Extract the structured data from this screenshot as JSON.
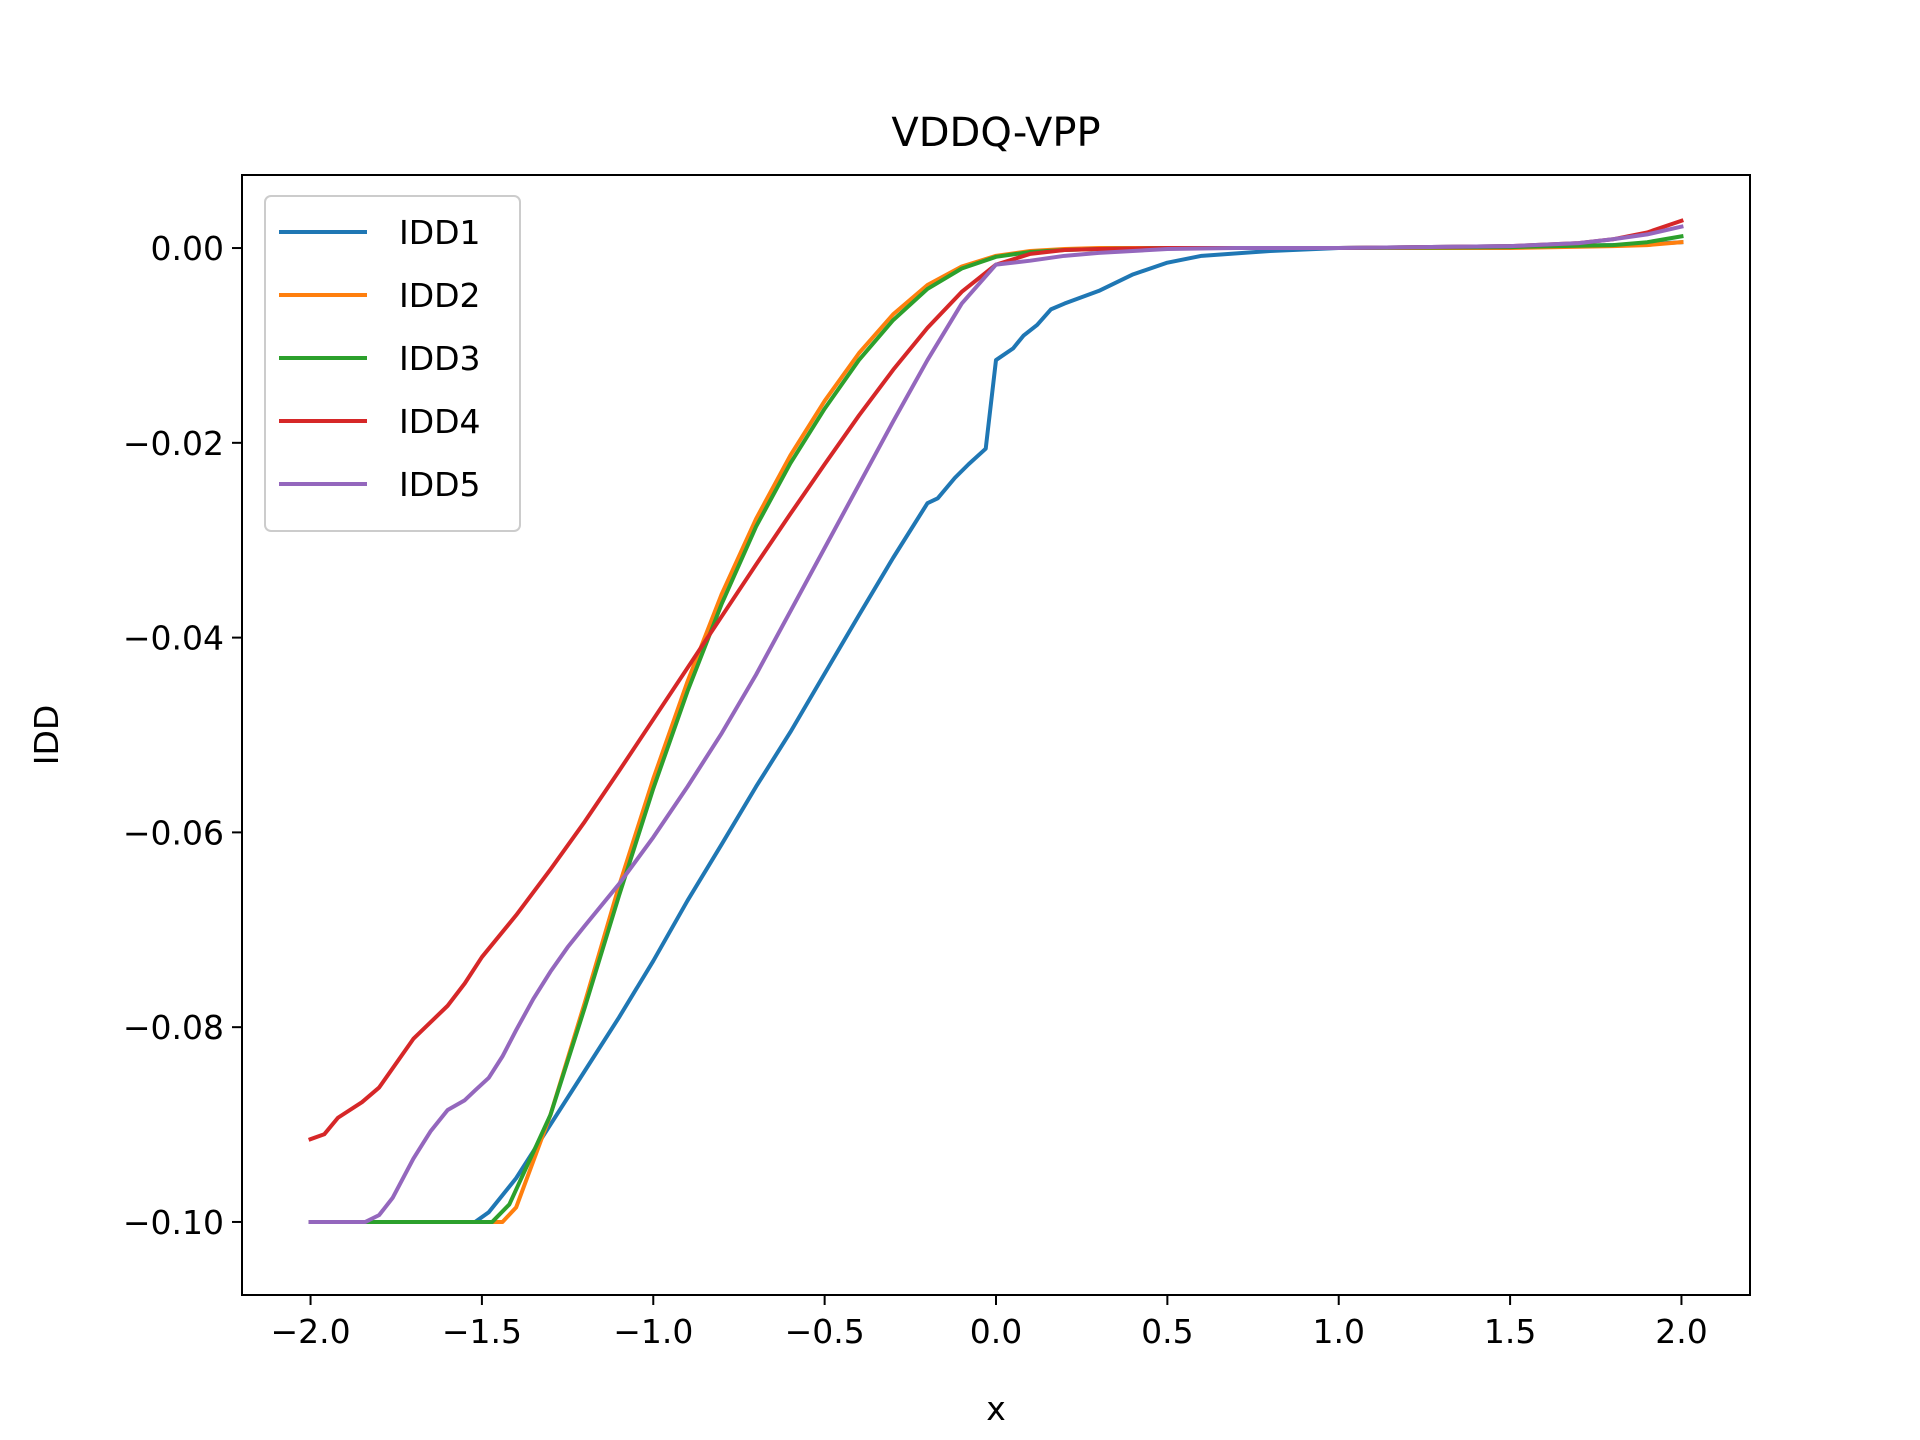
{
  "chart_data": {
    "type": "line",
    "title": "VDDQ-VPP",
    "xlabel": "x",
    "ylabel": "IDD",
    "xlim": [
      -2.2,
      2.2
    ],
    "ylim": [
      -0.1075,
      0.0075
    ],
    "xticks": [
      -2.0,
      -1.5,
      -1.0,
      -0.5,
      0.0,
      0.5,
      1.0,
      1.5,
      2.0
    ],
    "xtick_labels": [
      "−2.0",
      "−1.5",
      "−1.0",
      "−0.5",
      "0.0",
      "0.5",
      "1.0",
      "1.5",
      "2.0"
    ],
    "yticks": [
      0.0,
      -0.02,
      -0.04,
      -0.06,
      -0.08,
      -0.1
    ],
    "ytick_labels": [
      "0.00",
      "−0.02",
      "−0.04",
      "−0.06",
      "−0.08",
      "−0.10"
    ],
    "grid": false,
    "legend_position": "top-left",
    "series": [
      {
        "name": "IDD1",
        "color": "#1f77b4",
        "x": [
          -2.0,
          -1.9,
          -1.8,
          -1.6,
          -1.52,
          -1.48,
          -1.4,
          -1.3,
          -1.2,
          -1.1,
          -1.0,
          -0.9,
          -0.8,
          -0.7,
          -0.6,
          -0.5,
          -0.4,
          -0.3,
          -0.2,
          -0.17,
          -0.12,
          -0.08,
          -0.03,
          0.0,
          0.05,
          0.08,
          0.12,
          0.16,
          0.2,
          0.3,
          0.4,
          0.5,
          0.6,
          0.8,
          1.0,
          1.5,
          1.8,
          1.9,
          2.0
        ],
        "y": [
          -0.1,
          -0.1,
          -0.1,
          -0.1,
          -0.1,
          -0.099,
          -0.0955,
          -0.09,
          -0.0845,
          -0.079,
          -0.0732,
          -0.067,
          -0.0612,
          -0.0553,
          -0.0497,
          -0.0437,
          -0.0377,
          -0.0318,
          -0.0262,
          -0.0257,
          -0.0236,
          -0.0222,
          -0.0206,
          -0.0115,
          -0.0103,
          -0.009,
          -0.0079,
          -0.0063,
          -0.0057,
          -0.0044,
          -0.0027,
          -0.0015,
          -0.0008,
          -0.0003,
          0.0,
          0.0002,
          0.0003,
          0.0004,
          0.0006
        ]
      },
      {
        "name": "IDD2",
        "color": "#ff7f0e",
        "x": [
          -2.0,
          -1.6,
          -1.5,
          -1.44,
          -1.4,
          -1.3,
          -1.2,
          -1.1,
          -1.0,
          -0.9,
          -0.8,
          -0.7,
          -0.6,
          -0.5,
          -0.4,
          -0.3,
          -0.2,
          -0.1,
          0.0,
          0.1,
          0.2,
          0.3,
          0.5,
          0.7,
          1.0,
          1.5,
          1.8,
          1.9,
          2.0
        ],
        "y": [
          -0.1,
          -0.1,
          -0.1,
          -0.1,
          -0.0985,
          -0.089,
          -0.0775,
          -0.0655,
          -0.0545,
          -0.0445,
          -0.0355,
          -0.0278,
          -0.0213,
          -0.0157,
          -0.0108,
          -0.0068,
          -0.0038,
          -0.0019,
          -0.0008,
          -0.0003,
          -0.0001,
          0.0,
          0.0,
          0.0,
          0.0,
          0.0,
          0.0002,
          0.0003,
          0.0006
        ]
      },
      {
        "name": "IDD3",
        "color": "#2ca02c",
        "x": [
          -2.0,
          -1.6,
          -1.5,
          -1.47,
          -1.42,
          -1.3,
          -1.2,
          -1.1,
          -1.0,
          -0.9,
          -0.8,
          -0.7,
          -0.6,
          -0.5,
          -0.4,
          -0.3,
          -0.2,
          -0.1,
          0.0,
          0.1,
          0.2,
          0.3,
          0.5,
          0.7,
          1.0,
          1.5,
          1.8,
          1.9,
          2.0
        ],
        "y": [
          -0.1,
          -0.1,
          -0.1,
          -0.1,
          -0.0982,
          -0.089,
          -0.078,
          -0.0665,
          -0.0555,
          -0.0455,
          -0.0365,
          -0.0286,
          -0.0221,
          -0.0165,
          -0.0115,
          -0.0074,
          -0.0042,
          -0.0021,
          -0.0009,
          -0.0004,
          -0.0002,
          -0.0001,
          0.0,
          0.0,
          0.0,
          0.0001,
          0.0003,
          0.0006,
          0.0012
        ]
      },
      {
        "name": "IDD4",
        "color": "#d62728",
        "x": [
          -2.0,
          -1.96,
          -1.92,
          -1.85,
          -1.8,
          -1.7,
          -1.6,
          -1.55,
          -1.5,
          -1.4,
          -1.3,
          -1.2,
          -1.1,
          -1.0,
          -0.9,
          -0.8,
          -0.7,
          -0.6,
          -0.5,
          -0.4,
          -0.3,
          -0.2,
          -0.1,
          0.0,
          0.1,
          0.2,
          0.3,
          0.5,
          0.7,
          1.0,
          1.5,
          1.7,
          1.8,
          1.9,
          2.0
        ],
        "y": [
          -0.0915,
          -0.091,
          -0.0893,
          -0.0877,
          -0.0862,
          -0.0812,
          -0.0778,
          -0.0755,
          -0.0728,
          -0.0685,
          -0.0638,
          -0.0589,
          -0.0537,
          -0.0484,
          -0.0431,
          -0.0378,
          -0.0325,
          -0.0273,
          -0.0222,
          -0.0172,
          -0.0125,
          -0.0082,
          -0.0045,
          -0.0017,
          -0.0006,
          -0.0002,
          -0.0001,
          0.0,
          0.0,
          0.0,
          0.0002,
          0.0005,
          0.0009,
          0.0016,
          0.0028
        ]
      },
      {
        "name": "IDD5",
        "color": "#9467bd",
        "x": [
          -2.0,
          -1.9,
          -1.84,
          -1.8,
          -1.76,
          -1.7,
          -1.65,
          -1.6,
          -1.55,
          -1.52,
          -1.48,
          -1.44,
          -1.4,
          -1.35,
          -1.3,
          -1.25,
          -1.2,
          -1.1,
          -1.0,
          -0.9,
          -0.8,
          -0.7,
          -0.6,
          -0.5,
          -0.4,
          -0.3,
          -0.2,
          -0.1,
          0.0,
          0.1,
          0.2,
          0.3,
          0.5,
          0.7,
          1.0,
          1.5,
          1.7,
          1.8,
          1.9,
          2.0
        ],
        "y": [
          -0.1,
          -0.1,
          -0.1,
          -0.0993,
          -0.0975,
          -0.0935,
          -0.0907,
          -0.0885,
          -0.0875,
          -0.0865,
          -0.0852,
          -0.083,
          -0.0803,
          -0.0771,
          -0.0743,
          -0.0718,
          -0.0696,
          -0.0653,
          -0.0605,
          -0.0553,
          -0.0498,
          -0.0438,
          -0.0373,
          -0.0308,
          -0.0243,
          -0.0178,
          -0.0115,
          -0.0057,
          -0.0017,
          -0.0013,
          -0.0008,
          -0.0005,
          -0.0001,
          0.0,
          0.0,
          0.0002,
          0.0005,
          0.0009,
          0.0014,
          0.0022
        ]
      }
    ]
  }
}
